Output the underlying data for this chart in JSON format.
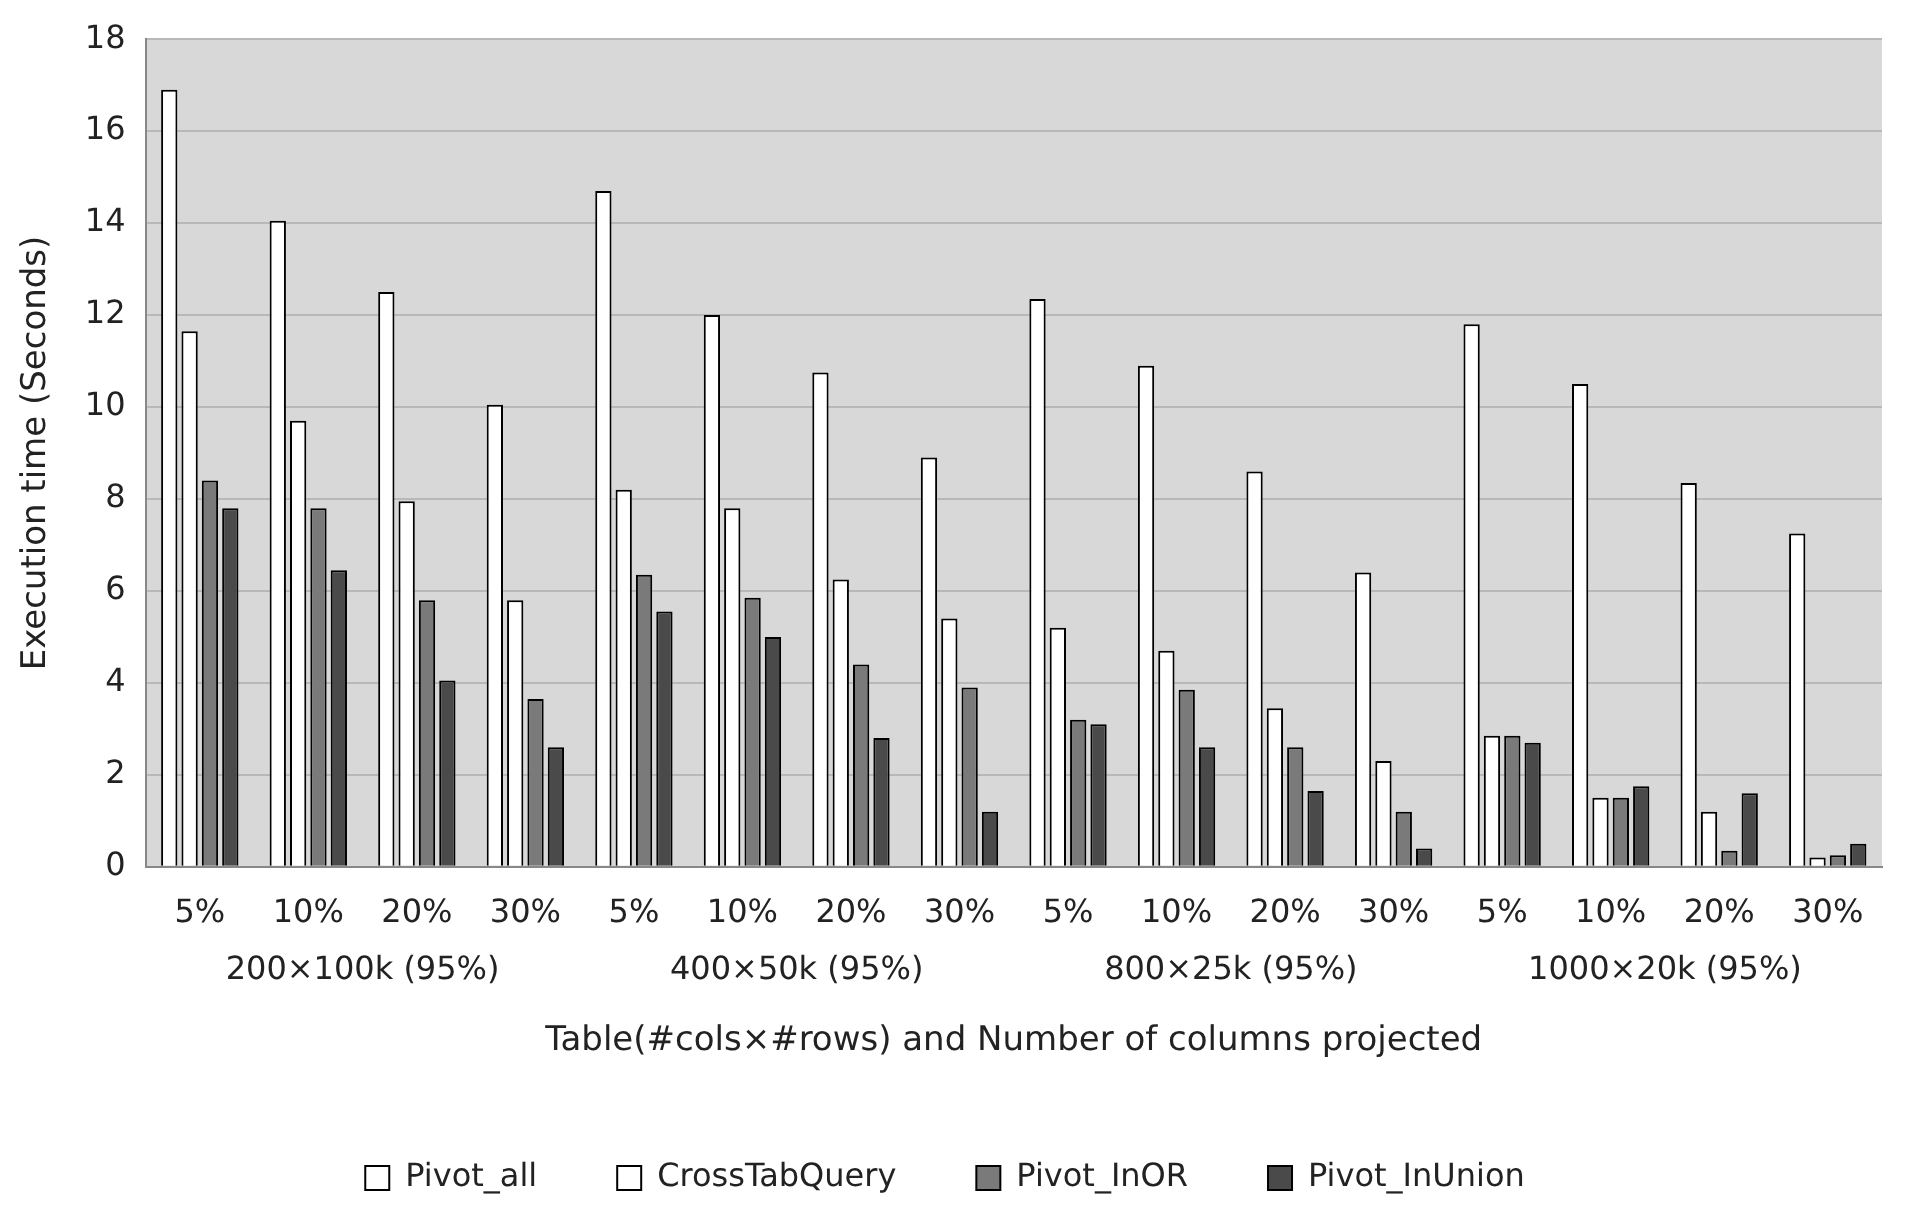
{
  "chart_data": {
    "type": "bar",
    "xlabel": "Table(#cols×#rows) and Number of columns projected",
    "ylabel": "Execution time (Seconds)",
    "categories": [
      "5%",
      "10%",
      "20%",
      "30%",
      "5%",
      "10%",
      "20%",
      "30%",
      "5%",
      "10%",
      "20%",
      "30%",
      "5%",
      "10%",
      "20%",
      "30%"
    ],
    "series": [
      {
        "name": "Pivot_all",
        "color": "#ffffff",
        "values": [
          16.9,
          14.05,
          12.5,
          10.05,
          14.7,
          12.0,
          10.75,
          8.9,
          12.35,
          10.9,
          8.6,
          6.4,
          11.8,
          10.5,
          8.35,
          7.25
        ]
      },
      {
        "name": "CrossTabQuery",
        "color": "#ffffff",
        "values": [
          11.65,
          9.7,
          7.95,
          5.8,
          8.2,
          7.8,
          6.25,
          5.4,
          5.2,
          4.7,
          3.45,
          2.3,
          2.85,
          1.5,
          1.2,
          0.2
        ]
      },
      {
        "name": "Pivot_InOR",
        "color": "#7a7a7a",
        "values": [
          8.4,
          7.8,
          5.8,
          3.65,
          6.35,
          5.85,
          4.4,
          3.9,
          3.2,
          3.85,
          2.6,
          1.2,
          2.85,
          1.5,
          0.35,
          0.25
        ]
      },
      {
        "name": "Pivot_InUnion",
        "color": "#4a4a4a",
        "values": [
          7.8,
          6.45,
          4.05,
          2.6,
          5.55,
          5.0,
          2.8,
          1.2,
          3.1,
          2.6,
          1.65,
          0.4,
          2.7,
          1.75,
          1.6,
          0.5
        ]
      }
    ],
    "annotations": [
      "200×100k (95%)",
      "400×50k (95%)",
      "800×25k (95%)",
      "1000×20k (95%)"
    ],
    "ylim": [
      0,
      18
    ],
    "yticks": [
      0,
      2,
      4,
      6,
      8,
      10,
      12,
      14,
      16,
      18
    ],
    "grid": "y",
    "legend": "bottom"
  }
}
